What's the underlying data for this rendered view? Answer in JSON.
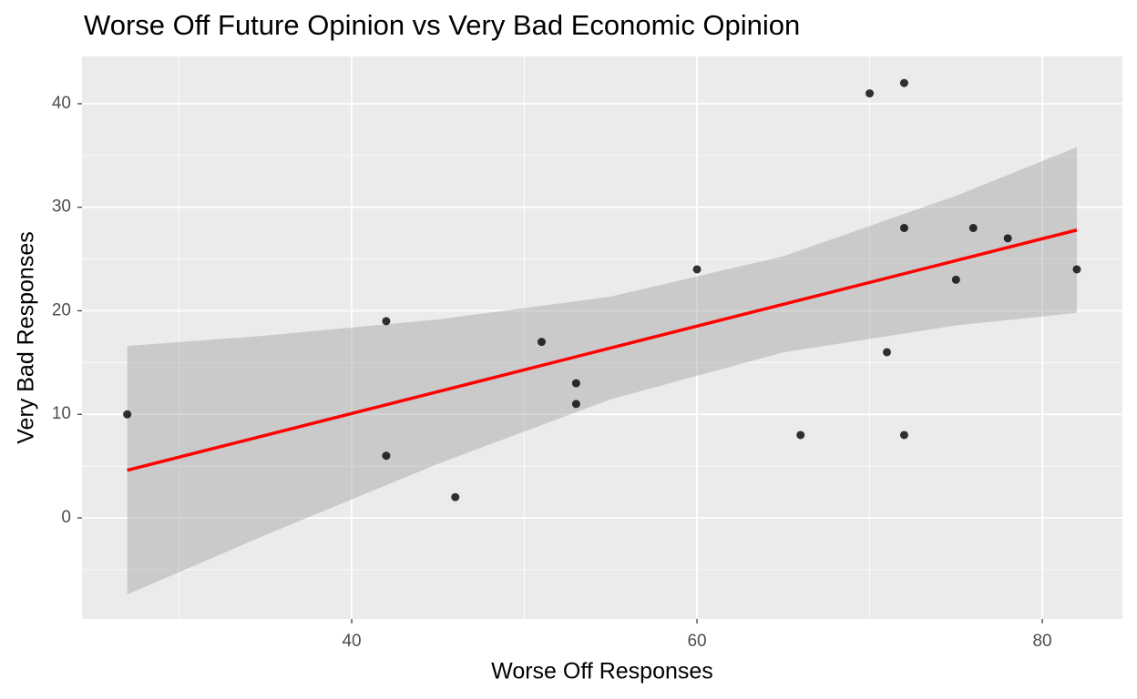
{
  "chart_data": {
    "type": "scatter",
    "title": "Worse Off Future Opinion vs Very Bad Economic Opinion",
    "x_label": "Worse Off Responses",
    "y_label": "Very Bad Responses",
    "x": [
      27,
      42,
      42,
      46,
      51,
      53,
      53,
      60,
      66,
      70,
      71,
      72,
      72,
      72,
      75,
      76,
      78,
      82
    ],
    "y": [
      10,
      19,
      6,
      2,
      17,
      13,
      11,
      24,
      8,
      41,
      16,
      42,
      28,
      8,
      23,
      28,
      27,
      24
    ],
    "color": "#000000",
    "fit": {
      "x": [
        27,
        35,
        45,
        55,
        65,
        75,
        82
      ],
      "y": [
        4.6,
        7.97,
        12.19,
        16.41,
        20.63,
        24.85,
        27.8
      ],
      "lower": [
        -7.4,
        -1.66,
        5.22,
        11.45,
        15.99,
        18.59,
        19.8
      ],
      "upper": [
        16.6,
        17.6,
        19.16,
        21.37,
        25.27,
        31.11,
        35.8
      ],
      "color": "#ff0000",
      "band_color": "#999999"
    },
    "xlim": [
      24.38,
      84.64
    ],
    "ylim": [
      -9.76,
      44.57
    ],
    "xticks": [
      40,
      60,
      80
    ],
    "yticks": [
      0,
      10,
      20,
      30,
      40
    ],
    "xminor": [
      30,
      50,
      70
    ],
    "yminor": [
      -5,
      5,
      15,
      25,
      35
    ],
    "grid": true
  }
}
